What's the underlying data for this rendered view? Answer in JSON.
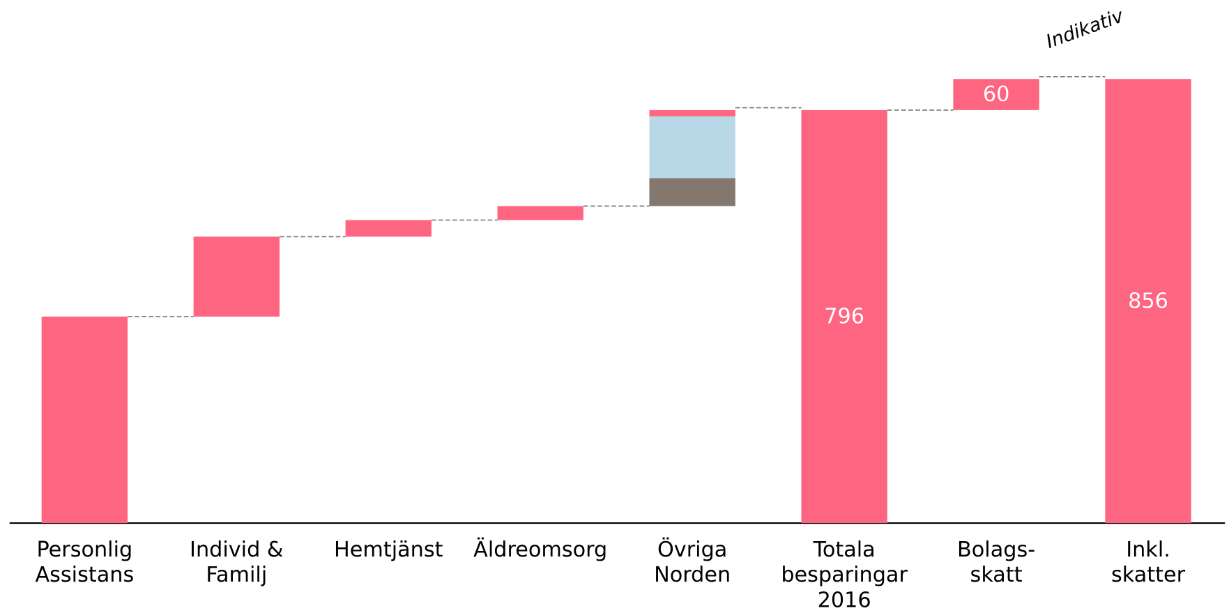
{
  "chart_data": {
    "type": "waterfall",
    "ylim": [
      0,
      856
    ],
    "bars": [
      {
        "category": [
          "Personlig",
          "Assistans"
        ],
        "segments": [
          398
        ],
        "colors": [
          "#fe6580"
        ]
      },
      {
        "category": [
          "Individ &",
          "Familj"
        ],
        "segments": [
          154
        ],
        "colors": [
          "#fe6580"
        ]
      },
      {
        "category": [
          "Hemtjänst"
        ],
        "segments": [
          32
        ],
        "colors": [
          "#fe6580"
        ]
      },
      {
        "category": [
          "Äldreomsorg"
        ],
        "segments": [
          27
        ],
        "colors": [
          "#fe6580"
        ]
      },
      {
        "category": [
          "Övriga",
          "Norden"
        ],
        "segments": [
          54,
          119,
          12
        ],
        "colors": [
          "#83776e",
          "#b8d8e8",
          "#fe6580"
        ]
      },
      {
        "category": [
          "Totala",
          "besparingar",
          "2016"
        ],
        "segments": [
          796
        ],
        "colors": [
          "#fe6580"
        ],
        "total": true,
        "labeled": true
      },
      {
        "category": [
          "Bolags-",
          "skatt"
        ],
        "segments": [
          60
        ],
        "colors": [
          "#fe6580"
        ],
        "labeled": true
      },
      {
        "category": [
          "Inkl.",
          "skatter"
        ],
        "segments": [
          856
        ],
        "colors": [
          "#fe6580"
        ],
        "total": true,
        "labeled": true
      }
    ],
    "annotation": "Indikativ"
  }
}
